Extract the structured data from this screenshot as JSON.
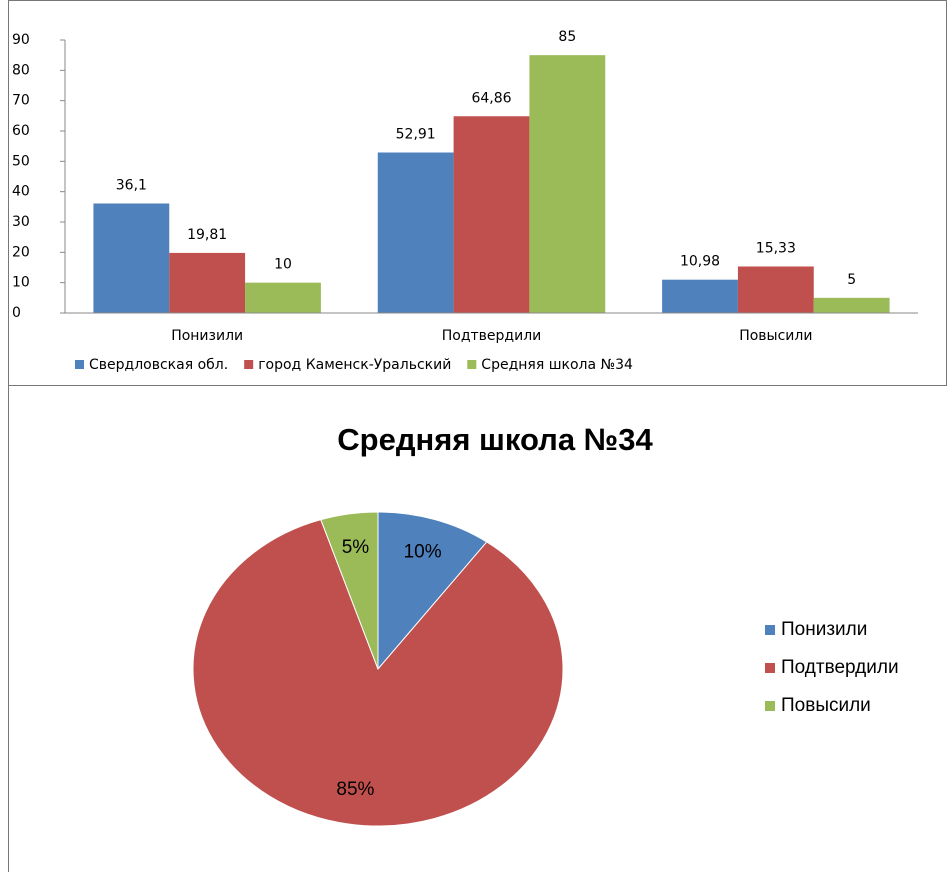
{
  "chart_data": [
    {
      "type": "bar",
      "categories": [
        "Понизили",
        "Подтвердили",
        "Повысили"
      ],
      "series": [
        {
          "name": "Свердловская обл.",
          "color": "#4f81bd",
          "values": [
            36.1,
            52.91,
            10.98
          ],
          "value_labels": [
            "36,1",
            "52,91",
            "10,98"
          ]
        },
        {
          "name": "город Каменск-Уральский",
          "color": "#c0504d",
          "values": [
            19.81,
            64.86,
            15.33
          ],
          "value_labels": [
            "19,81",
            "64,86",
            "15,33"
          ]
        },
        {
          "name": "Средняя школа №34",
          "color": "#9bbb59",
          "values": [
            10,
            85,
            5
          ],
          "value_labels": [
            "10",
            "85",
            "5"
          ]
        }
      ],
      "ylim": [
        0,
        90
      ],
      "yticks": [
        0,
        10,
        20,
        30,
        40,
        50,
        60,
        70,
        80,
        90
      ],
      "legend": "bottom"
    },
    {
      "type": "pie",
      "title": "Средняя школа №34",
      "categories": [
        "Понизили",
        "Подтвердили",
        "Повысили"
      ],
      "values": [
        10,
        85,
        5
      ],
      "value_labels": [
        "10%",
        "85%",
        "5%"
      ],
      "colors": [
        "#4f81bd",
        "#c0504d",
        "#9bbb59"
      ],
      "legend": "right"
    }
  ]
}
